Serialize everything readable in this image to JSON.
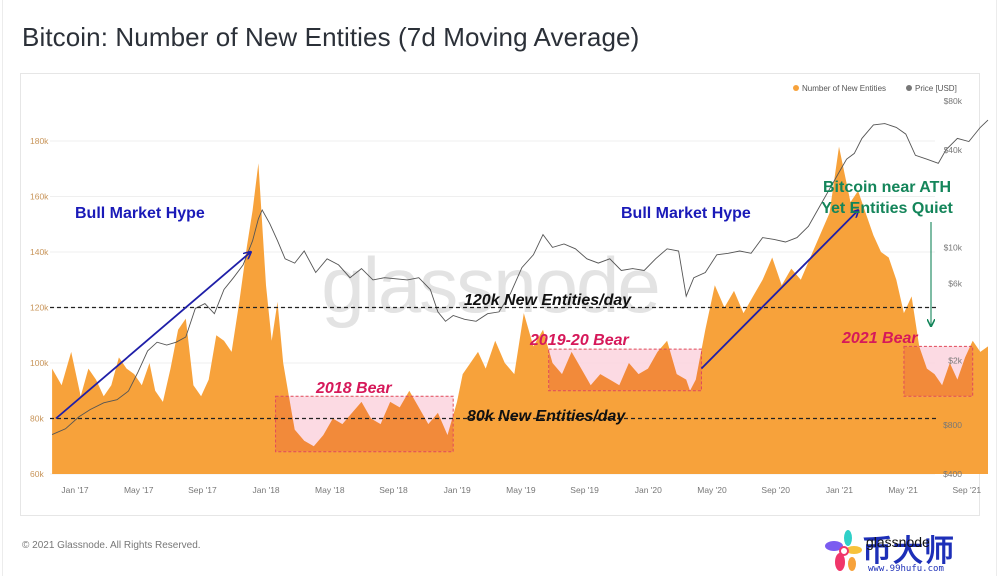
{
  "title": "Bitcoin: Number of New Entities (7d Moving Average)",
  "footer": "© 2021 Glassnode. All Rights Reserved.",
  "watermark": "glassnode",
  "logo": {
    "cn_text": "币大师",
    "overlay_text": "glassnode",
    "url_text": "www.99hufu.com"
  },
  "colors": {
    "entities": "#f7a23b",
    "entities_in_box": "#f28a3a",
    "price": "#555555",
    "bull_arrow": "#1f1fa8",
    "bull_text": "#1a1ab8",
    "bear_text": "#d6195a",
    "bear_box_fill": "#fbd3de",
    "bear_box_stroke": "#e04a5a",
    "ath_text": "#14855a",
    "level_line": "#222222",
    "axis_text": "#c8955a",
    "price_axis_text": "#777777"
  },
  "chart_data": {
    "type": "area",
    "title": "Bitcoin: Number of New Entities (7d Moving Average)",
    "legend": [
      {
        "name": "Number of New Entities",
        "color": "#f7a23b"
      },
      {
        "name": "Price [USD]",
        "color": "#666666"
      }
    ],
    "legend_position": "top-right",
    "x_ticks": [
      "Jan '17",
      "May '17",
      "Sep '17",
      "Jan '18",
      "May '18",
      "Sep '18",
      "Jan '19",
      "May '19",
      "Sep '19",
      "Jan '20",
      "May '20",
      "Sep '20",
      "Jan '21",
      "May '21",
      "Sep '21"
    ],
    "x_range": [
      "2016-11",
      "2021-10"
    ],
    "y_left": {
      "ticks": [
        "60k",
        "80k",
        "100k",
        "120k",
        "140k",
        "160k",
        "180k"
      ],
      "tick_values": [
        60000,
        80000,
        100000,
        120000,
        140000,
        160000,
        180000
      ],
      "range": [
        60000,
        180000
      ]
    },
    "y_right": {
      "scale": "log",
      "ticks": [
        "$400",
        "$800",
        "$2k",
        "$6k",
        "$10k",
        "$40k",
        "$80k"
      ],
      "tick_values": [
        400,
        800,
        2000,
        6000,
        10000,
        40000,
        80000
      ]
    },
    "grid": true,
    "series": [
      {
        "name": "Number of New Entities",
        "axis": "left",
        "x_year": [
          2016.88,
          2016.93,
          2016.98,
          2017.03,
          2017.07,
          2017.11,
          2017.15,
          2017.19,
          2017.23,
          2017.27,
          2017.31,
          2017.35,
          2017.39,
          2017.42,
          2017.46,
          2017.5,
          2017.54,
          2017.58,
          2017.62,
          2017.66,
          2017.7,
          2017.74,
          2017.78,
          2017.82,
          2017.86,
          2017.9,
          2017.93,
          2017.96,
          2017.98,
          2018.0,
          2018.03,
          2018.06,
          2018.09,
          2018.12,
          2018.15,
          2018.2,
          2018.25,
          2018.3,
          2018.35,
          2018.4,
          2018.45,
          2018.5,
          2018.55,
          2018.6,
          2018.65,
          2018.7,
          2018.75,
          2018.8,
          2018.85,
          2018.9,
          2018.95,
          2019.0,
          2019.03,
          2019.07,
          2019.11,
          2019.15,
          2019.2,
          2019.25,
          2019.3,
          2019.35,
          2019.4,
          2019.45,
          2019.5,
          2019.55,
          2019.6,
          2019.65,
          2019.7,
          2019.75,
          2019.8,
          2019.85,
          2019.9,
          2019.95,
          2020.0,
          2020.05,
          2020.1,
          2020.15,
          2020.2,
          2020.22,
          2020.25,
          2020.3,
          2020.35,
          2020.4,
          2020.45,
          2020.5,
          2020.55,
          2020.6,
          2020.65,
          2020.7,
          2020.75,
          2020.8,
          2020.85,
          2020.9,
          2020.95,
          2021.0,
          2021.03,
          2021.06,
          2021.1,
          2021.14,
          2021.18,
          2021.22,
          2021.26,
          2021.3,
          2021.34,
          2021.38,
          2021.42,
          2021.46,
          2021.5,
          2021.54,
          2021.58,
          2021.62,
          2021.66,
          2021.7,
          2021.74,
          2021.78
        ],
        "values": [
          98000,
          92000,
          104000,
          88000,
          98000,
          94000,
          88000,
          92000,
          102000,
          98000,
          96000,
          92000,
          100000,
          90000,
          86000,
          98000,
          112000,
          116000,
          92000,
          88000,
          94000,
          110000,
          108000,
          104000,
          122000,
          142000,
          155000,
          172000,
          150000,
          128000,
          108000,
          122000,
          100000,
          88000,
          76000,
          72000,
          70000,
          74000,
          80000,
          78000,
          82000,
          86000,
          80000,
          78000,
          86000,
          84000,
          90000,
          84000,
          78000,
          82000,
          74000,
          86000,
          96000,
          100000,
          104000,
          98000,
          108000,
          100000,
          96000,
          118000,
          106000,
          112000,
          100000,
          96000,
          104000,
          98000,
          92000,
          96000,
          94000,
          92000,
          100000,
          96000,
          98000,
          104000,
          108000,
          96000,
          94000,
          90000,
          94000,
          112000,
          128000,
          120000,
          126000,
          118000,
          124000,
          130000,
          138000,
          128000,
          134000,
          130000,
          138000,
          146000,
          154000,
          178000,
          168000,
          158000,
          162000,
          154000,
          146000,
          140000,
          138000,
          130000,
          118000,
          124000,
          106000,
          98000,
          96000,
          92000,
          100000,
          94000,
          102000,
          108000,
          104000,
          106000
        ]
      },
      {
        "name": "Price [USD]",
        "axis": "right",
        "x_year": [
          2016.88,
          2016.95,
          2017.02,
          2017.08,
          2017.15,
          2017.22,
          2017.28,
          2017.33,
          2017.38,
          2017.43,
          2017.48,
          2017.53,
          2017.58,
          2017.63,
          2017.68,
          2017.73,
          2017.78,
          2017.83,
          2017.88,
          2017.93,
          2017.96,
          2017.98,
          2018.02,
          2018.06,
          2018.1,
          2018.15,
          2018.2,
          2018.26,
          2018.32,
          2018.38,
          2018.44,
          2018.5,
          2018.56,
          2018.62,
          2018.68,
          2018.74,
          2018.8,
          2018.86,
          2018.9,
          2018.94,
          2018.98,
          2019.04,
          2019.1,
          2019.16,
          2019.22,
          2019.28,
          2019.34,
          2019.4,
          2019.45,
          2019.5,
          2019.56,
          2019.62,
          2019.68,
          2019.74,
          2019.8,
          2019.86,
          2019.92,
          2019.98,
          2020.04,
          2020.1,
          2020.16,
          2020.2,
          2020.24,
          2020.3,
          2020.36,
          2020.42,
          2020.48,
          2020.54,
          2020.6,
          2020.66,
          2020.72,
          2020.78,
          2020.84,
          2020.9,
          2020.96,
          2021.0,
          2021.04,
          2021.08,
          2021.12,
          2021.18,
          2021.24,
          2021.3,
          2021.35,
          2021.4,
          2021.46,
          2021.52,
          2021.56,
          2021.62,
          2021.68,
          2021.74,
          2021.78
        ],
        "values": [
          700,
          760,
          900,
          1000,
          1100,
          1150,
          1300,
          1700,
          2300,
          2600,
          2500,
          2600,
          2800,
          4200,
          4500,
          3900,
          5500,
          6500,
          7800,
          11000,
          15000,
          17000,
          14000,
          11000,
          8500,
          8000,
          9500,
          7000,
          8500,
          7800,
          6500,
          7400,
          6300,
          6500,
          6400,
          6300,
          6500,
          5500,
          4000,
          3500,
          3800,
          3600,
          3500,
          3900,
          4000,
          5200,
          7500,
          9000,
          12000,
          10000,
          10500,
          9800,
          8500,
          8000,
          8500,
          7200,
          7400,
          7200,
          8500,
          9800,
          9500,
          5000,
          6500,
          7000,
          9000,
          9200,
          9500,
          9200,
          11500,
          11200,
          10800,
          11500,
          13500,
          18000,
          24000,
          29000,
          35000,
          38000,
          47000,
          57000,
          58000,
          55000,
          50000,
          37000,
          35000,
          33000,
          40000,
          47000,
          45000,
          55000,
          61000
        ]
      }
    ],
    "annotations": [
      {
        "type": "text",
        "label": "Bull Market Hype",
        "color": "#1a1ab8"
      },
      {
        "type": "arrow",
        "label": "bull-arrow-2017",
        "from_year": 2016.9,
        "from_value": 80000,
        "to_year": 2017.92,
        "to_value": 140000
      },
      {
        "type": "text",
        "label": "Bull Market Hype",
        "color": "#1a1ab8"
      },
      {
        "type": "arrow",
        "label": "bull-arrow-2020",
        "from_year": 2020.28,
        "from_value": 98000,
        "to_year": 2021.1,
        "to_value": 155000
      },
      {
        "type": "hline",
        "label": "120k New Entities/day",
        "value": 120000
      },
      {
        "type": "hline",
        "label": "80k New Entities/day",
        "value": 80000
      },
      {
        "type": "box",
        "label": "2018 Bear",
        "x0_year": 2018.05,
        "x1_year": 2018.98,
        "y0": 68000,
        "y1": 88000
      },
      {
        "type": "box",
        "label": "2019-20 Bear",
        "x0_year": 2019.48,
        "x1_year": 2020.28,
        "y0": 90000,
        "y1": 105000
      },
      {
        "type": "box",
        "label": "2021 Bear",
        "x0_year": 2021.34,
        "x1_year": 2021.7,
        "y0": 88000,
        "y1": 106000
      },
      {
        "type": "text",
        "label": "Bitcoin near ATH",
        "color": "#14855a"
      },
      {
        "type": "text",
        "label": "Yet Entities Quiet",
        "color": "#14855a"
      },
      {
        "type": "arrow",
        "label": "ath-arrow",
        "color": "#14855a"
      }
    ]
  }
}
